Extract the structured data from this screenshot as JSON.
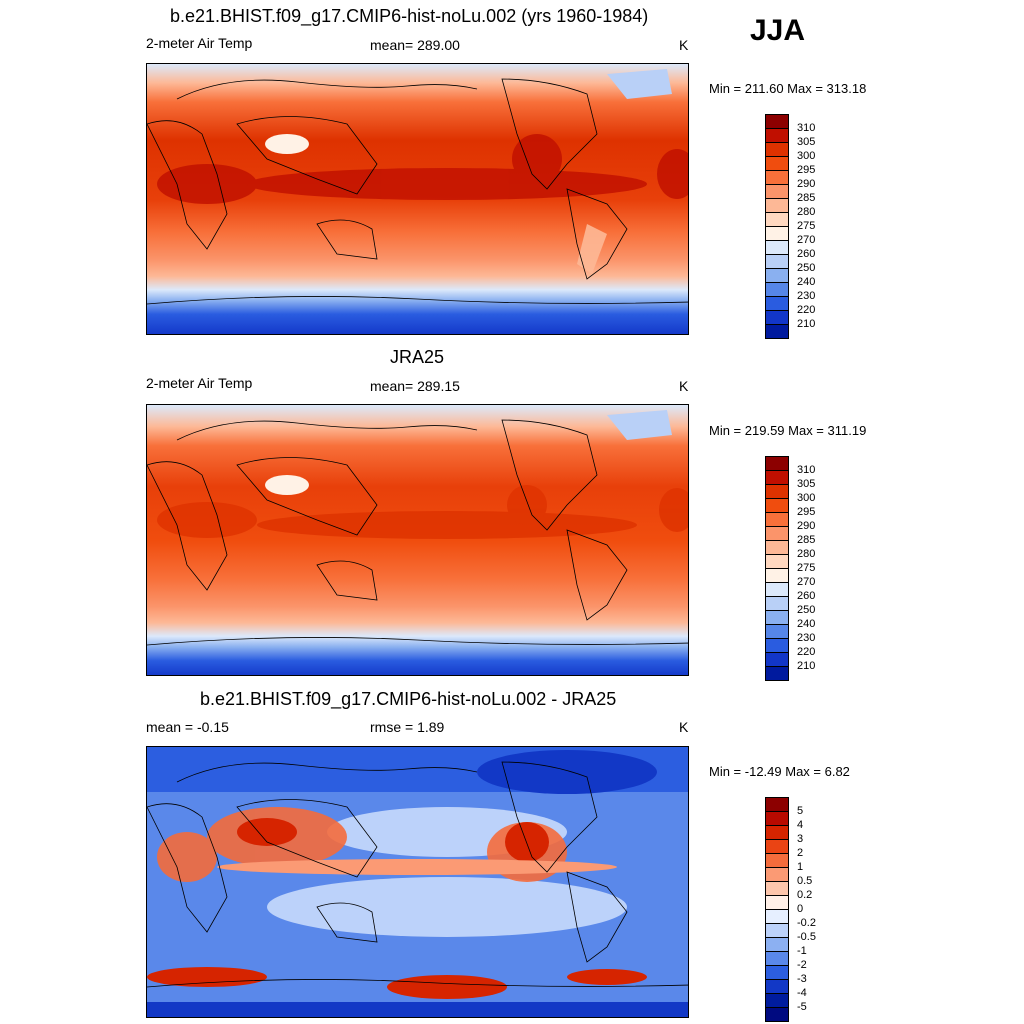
{
  "season": "JJA",
  "panels": [
    {
      "title": "b.e21.BHIST.f09_g17.CMIP6-hist-noLu.002 (yrs 1960-1984)",
      "left_label": "2-meter Air Temp",
      "center_label": "mean= 289.00",
      "unit": "K",
      "minmax": "Min = 211.60 Max = 313.18",
      "colorbar": {
        "labels": [
          "310",
          "305",
          "300",
          "295",
          "290",
          "285",
          "280",
          "275",
          "270",
          "260",
          "250",
          "240",
          "230",
          "220",
          "210"
        ],
        "colors": [
          "#8c0000",
          "#c00f00",
          "#de3200",
          "#f04d0e",
          "#f8703a",
          "#fb946a",
          "#fdb896",
          "#ffd8c0",
          "#fff2e6",
          "#dce9fb",
          "#b9d0f7",
          "#8ab0f0",
          "#5686e8",
          "#2a5ce0",
          "#1236c8",
          "#001a9e"
        ]
      }
    },
    {
      "title": "JRA25",
      "left_label": "2-meter Air Temp",
      "center_label": "mean= 289.15",
      "unit": "K",
      "minmax": "Min = 219.59 Max = 311.19",
      "colorbar": {
        "labels": [
          "310",
          "305",
          "300",
          "295",
          "290",
          "285",
          "280",
          "275",
          "270",
          "260",
          "250",
          "240",
          "230",
          "220",
          "210"
        ],
        "colors": [
          "#8c0000",
          "#c00f00",
          "#de3200",
          "#f04d0e",
          "#f8703a",
          "#fb946a",
          "#fdb896",
          "#ffd8c0",
          "#fff2e6",
          "#dce9fb",
          "#b9d0f7",
          "#8ab0f0",
          "#5686e8",
          "#2a5ce0",
          "#1236c8",
          "#001a9e"
        ]
      }
    },
    {
      "title": "b.e21.BHIST.f09_g17.CMIP6-hist-noLu.002 - JRA25",
      "left_label": "mean =  -0.15",
      "center_label": "rmse =   1.89",
      "unit": "K",
      "minmax": "Min = -12.49 Max =   6.82",
      "colorbar": {
        "labels": [
          "5",
          "4",
          "3",
          "2",
          "1",
          "0.5",
          "0.2",
          "0",
          "-0.2",
          "-0.5",
          "-1",
          "-2",
          "-3",
          "-4",
          "-5"
        ],
        "colors": [
          "#8c0000",
          "#b80a00",
          "#d62400",
          "#ea4414",
          "#f46c3c",
          "#fb9a74",
          "#fdc6ac",
          "#fff0e8",
          "#e6efff",
          "#bcd2fa",
          "#8cb0f2",
          "#5a88ea",
          "#2c5ee0",
          "#1238c6",
          "#001c9e",
          "#000a80"
        ]
      }
    }
  ],
  "colors": {
    "hot": "#de3200",
    "warm": "#f8703a",
    "mild": "#fdb896",
    "cool": "#dce9fb",
    "cold": "#5686e8",
    "frozen": "#1236c8",
    "land_outline": "#000000"
  }
}
